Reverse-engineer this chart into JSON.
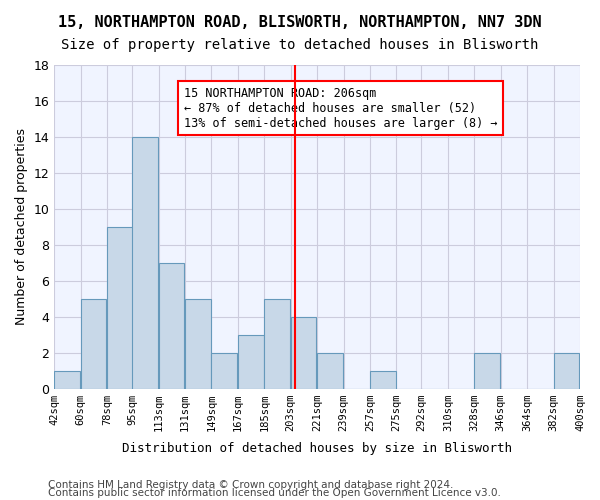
{
  "title": "15, NORTHAMPTON ROAD, BLISWORTH, NORTHAMPTON, NN7 3DN",
  "subtitle": "Size of property relative to detached houses in Blisworth",
  "xlabel": "Distribution of detached houses by size in Blisworth",
  "ylabel": "Number of detached properties",
  "bar_color": "#c8d8e8",
  "bar_edgecolor": "#6699bb",
  "background_color": "#f0f4ff",
  "grid_color": "#ccccdd",
  "annotation_text": "15 NORTHAMPTON ROAD: 206sqm\n← 87% of detached houses are smaller (52)\n13% of semi-detached houses are larger (8) →",
  "vline_x": 206,
  "categories": [
    "42sqm",
    "60sqm",
    "78sqm",
    "95sqm",
    "113sqm",
    "131sqm",
    "149sqm",
    "167sqm",
    "185sqm",
    "203sqm",
    "221sqm",
    "239sqm",
    "257sqm",
    "275sqm",
    "292sqm",
    "310sqm",
    "328sqm",
    "346sqm",
    "364sqm",
    "382sqm",
    "400sqm"
  ],
  "bin_edges": [
    42,
    60,
    78,
    95,
    113,
    131,
    149,
    167,
    185,
    203,
    221,
    239,
    257,
    275,
    292,
    310,
    328,
    346,
    364,
    382,
    400
  ],
  "values": [
    1,
    5,
    9,
    14,
    7,
    5,
    2,
    3,
    5,
    4,
    2,
    0,
    1,
    0,
    0,
    0,
    2,
    0,
    0,
    2
  ],
  "ylim": [
    0,
    18
  ],
  "yticks": [
    0,
    2,
    4,
    6,
    8,
    10,
    12,
    14,
    16,
    18
  ],
  "footer_line1": "Contains HM Land Registry data © Crown copyright and database right 2024.",
  "footer_line2": "Contains public sector information licensed under the Open Government Licence v3.0.",
  "title_fontsize": 11,
  "subtitle_fontsize": 10,
  "annotation_fontsize": 8.5,
  "footer_fontsize": 7.5
}
